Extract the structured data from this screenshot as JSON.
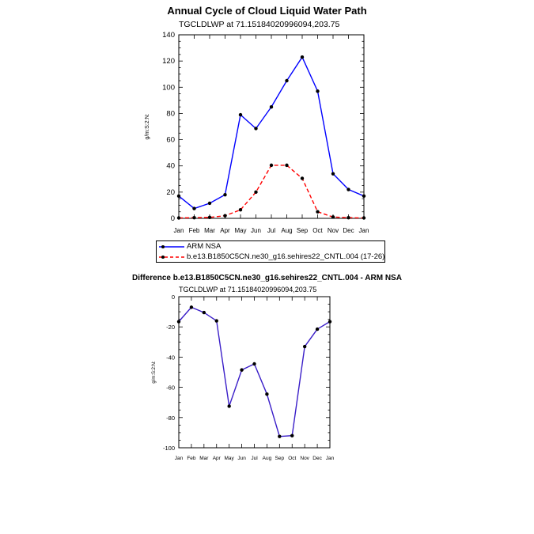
{
  "colors": {
    "obs": "#0000ff",
    "model": "#ff0000",
    "diff": "#3a1ec8",
    "marker": "#000000"
  },
  "chart_data": [
    {
      "type": "line",
      "title": "Annual Cycle of Cloud Liquid Water Path",
      "subtitle": "TGCLDLWP at 71.15184020996094,203.75",
      "ylabel": "g/m:S:2:N:",
      "xlabel": "",
      "categories": [
        "Jan",
        "Feb",
        "Mar",
        "Apr",
        "May",
        "Jun",
        "Jul",
        "Aug",
        "Sep",
        "Oct",
        "Nov",
        "Dec",
        "Jan"
      ],
      "ylim": [
        0,
        140
      ],
      "yticks": [
        "0",
        "20",
        "40",
        "60",
        "80",
        "100",
        "120",
        "140"
      ],
      "series": [
        {
          "name": "ARM NSA",
          "style": "solid",
          "values": [
            17,
            7.5,
            11.5,
            18,
            79,
            68.5,
            85,
            105,
            123,
            97,
            34,
            22,
            17
          ]
        },
        {
          "name": "b.e13.B1850C5CN.ne30_g16.sehires22_CNTL.004 (17-26)",
          "style": "dashed",
          "values": [
            0.3,
            0.5,
            0.7,
            2,
            6.5,
            20,
            40.5,
            40.5,
            30.5,
            5,
            1,
            0.5,
            0.3
          ]
        }
      ],
      "legend_placement": "below"
    },
    {
      "type": "line",
      "title": "Difference b.e13.B1850C5CN.ne30_g16.sehires22_CNTL.004 - ARM NSA",
      "subtitle": "TGCLDLWP at 71.15184020996094,203.75",
      "ylabel": "g/m:S:2:N:",
      "xlabel": "",
      "categories": [
        "Jan",
        "Feb",
        "Mar",
        "Apr",
        "May",
        "Jun",
        "Jul",
        "Aug",
        "Sep",
        "Oct",
        "Nov",
        "Dec",
        "Jan"
      ],
      "ylim": [
        -100,
        0
      ],
      "yticks": [
        "0",
        "-20",
        "-40",
        "-60",
        "-80",
        "-100"
      ],
      "series": [
        {
          "values": [
            -16.5,
            -7,
            -10.5,
            -16,
            -72.5,
            -48.5,
            -44.5,
            -64.5,
            -92.5,
            -92,
            -33,
            -21.5,
            -16.5
          ]
        }
      ]
    }
  ]
}
